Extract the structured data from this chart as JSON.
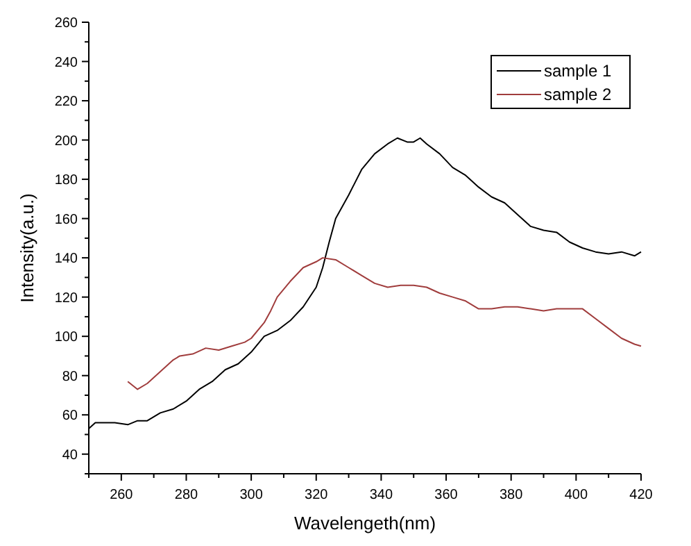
{
  "chart_data": {
    "type": "line",
    "xlabel": "Wavelengeth(nm)",
    "ylabel": "Intensity(a.u.)",
    "xlim": [
      250,
      420
    ],
    "xticks": [
      {
        "value": 250,
        "label": null
      },
      260,
      {
        "value": 270,
        "label": null
      },
      280,
      {
        "value": 290,
        "label": null
      },
      300,
      {
        "value": 310,
        "label": null
      },
      320,
      {
        "value": 330,
        "label": null
      },
      340,
      {
        "value": 350,
        "label": null
      },
      360,
      {
        "value": 370,
        "label": null
      },
      380,
      {
        "value": 390,
        "label": null
      },
      400,
      {
        "value": 410,
        "label": null
      },
      420
    ],
    "ylim": [
      30,
      260
    ],
    "yticks": [
      {
        "value": 30,
        "label": null
      },
      40,
      {
        "value": 50,
        "label": null
      },
      60,
      {
        "value": 70,
        "label": null
      },
      80,
      {
        "value": 90,
        "label": null
      },
      100,
      {
        "value": 110,
        "label": null
      },
      120,
      {
        "value": 130,
        "label": null
      },
      140,
      {
        "value": 150,
        "label": null
      },
      160,
      {
        "value": 170,
        "label": null
      },
      180,
      {
        "value": 190,
        "label": null
      },
      200,
      {
        "value": 210,
        "label": null
      },
      220,
      {
        "value": 230,
        "label": null
      },
      240,
      {
        "value": 250,
        "label": null
      },
      260
    ],
    "grid": false,
    "legend": "top right",
    "line_style": "solid",
    "series": [
      {
        "name": "sample 1",
        "color": "#000000",
        "x": [
          250,
          252,
          258,
          262,
          265,
          268,
          272,
          276,
          280,
          284,
          288,
          292,
          296,
          300,
          304,
          308,
          312,
          316,
          320,
          322,
          324,
          326,
          330,
          334,
          338,
          342,
          345,
          348,
          350,
          352,
          354,
          358,
          362,
          366,
          370,
          374,
          378,
          382,
          386,
          390,
          394,
          398,
          402,
          406,
          410,
          414,
          418,
          420
        ],
        "values": [
          53,
          56,
          56,
          55,
          57,
          57,
          61,
          63,
          67,
          73,
          77,
          83,
          86,
          92,
          100,
          103,
          108,
          115,
          125,
          135,
          148,
          160,
          172,
          185,
          193,
          198,
          201,
          199,
          199,
          201,
          198,
          193,
          186,
          182,
          176,
          171,
          168,
          162,
          156,
          154,
          153,
          148,
          145,
          143,
          142,
          143,
          141,
          143
        ]
      },
      {
        "name": "sample 2",
        "color": "#a03c3c",
        "x": [
          262,
          265,
          268,
          272,
          276,
          278,
          282,
          286,
          290,
          294,
          298,
          300,
          304,
          306,
          308,
          312,
          316,
          320,
          322,
          326,
          330,
          334,
          338,
          342,
          346,
          350,
          354,
          358,
          362,
          366,
          370,
          374,
          378,
          382,
          386,
          390,
          394,
          398,
          402,
          406,
          410,
          414,
          418,
          420
        ],
        "values": [
          77,
          73,
          76,
          82,
          88,
          90,
          91,
          94,
          93,
          95,
          97,
          99,
          107,
          113,
          120,
          128,
          135,
          138,
          140,
          139,
          135,
          131,
          127,
          125,
          126,
          126,
          125,
          122,
          120,
          118,
          114,
          114,
          115,
          115,
          114,
          113,
          114,
          114,
          114,
          109,
          104,
          99,
          96,
          95
        ]
      }
    ]
  }
}
